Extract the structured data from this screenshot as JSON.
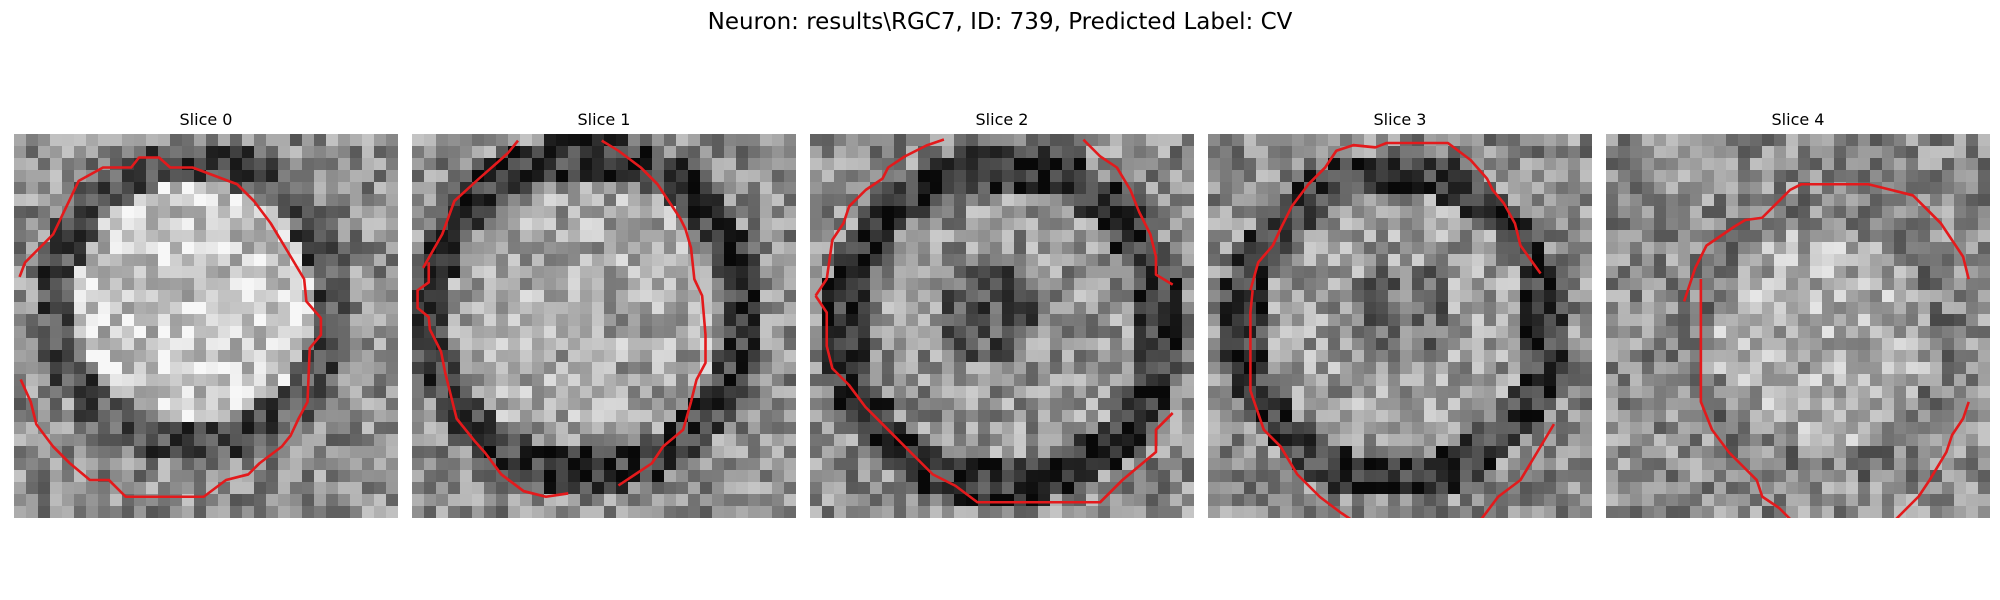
{
  "figure": {
    "title": "Neuron: results\\RGC7, ID: 739, Predicted Label: CV"
  },
  "slices": [
    {
      "label": "Slice 0",
      "outline_color": "#e31a1c"
    },
    {
      "label": "Slice 1",
      "outline_color": "#e31a1c"
    },
    {
      "label": "Slice 2",
      "outline_color": "#e31a1c"
    },
    {
      "label": "Slice 3",
      "outline_color": "#e31a1c"
    },
    {
      "label": "Slice 4",
      "outline_color": "#e31a1c"
    }
  ]
}
